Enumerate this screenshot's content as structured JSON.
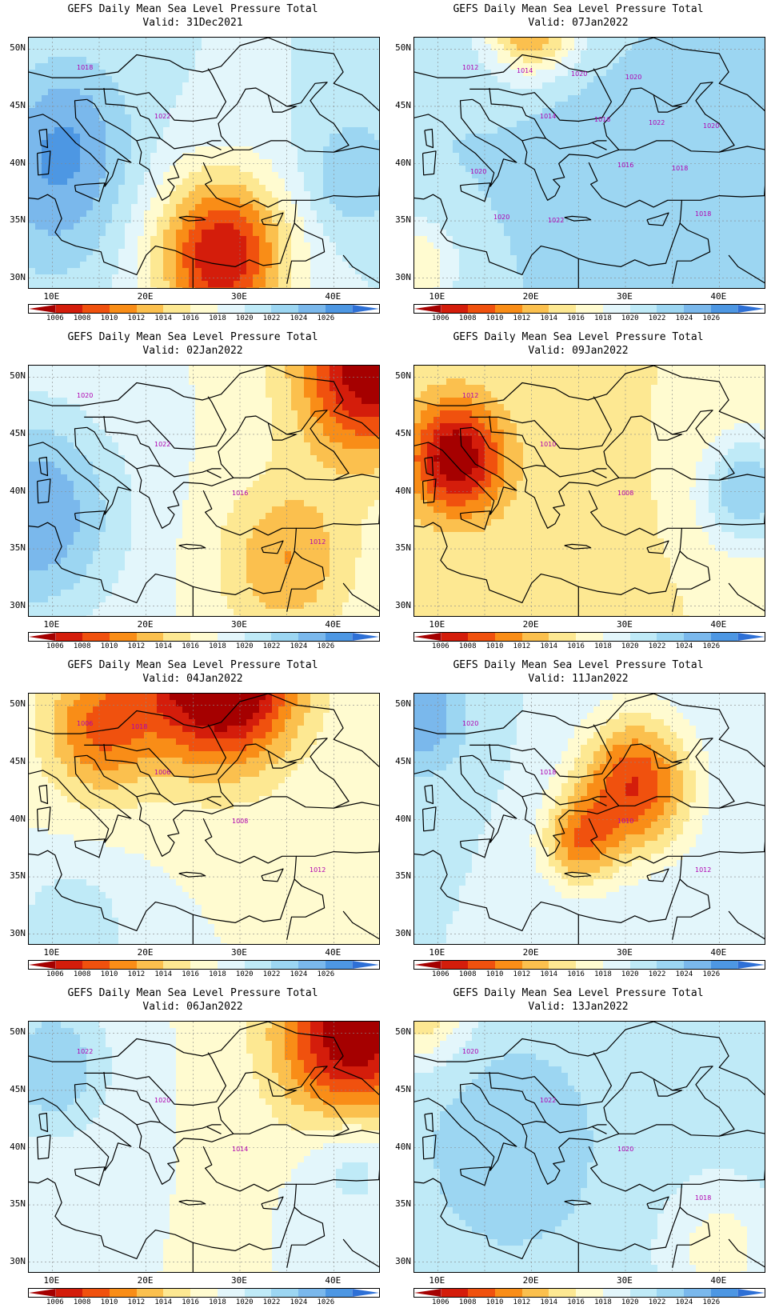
{
  "colorbar": {
    "colors": [
      "#a50000",
      "#d41d0b",
      "#f0510e",
      "#f98d17",
      "#fbc04e",
      "#fde892",
      "#fffbd0",
      "#e3f6fb",
      "#bfeaf7",
      "#9cd6f2",
      "#7ab8ec",
      "#4d97e3",
      "#2e70d6"
    ],
    "ticks": [
      "1006",
      "1008",
      "1010",
      "1012",
      "1014",
      "1016",
      "1018",
      "1020",
      "1022",
      "1024",
      "1026"
    ]
  },
  "axes": {
    "lat_labels": [
      "50N",
      "45N",
      "40N",
      "35N",
      "30N"
    ],
    "lon_labels": [
      "10E",
      "20E",
      "30E",
      "40E"
    ]
  },
  "contour_color": "#a020c8",
  "panels": [
    {
      "title": "GEFS Daily Mean Sea Level Pressure Total",
      "valid": "Valid: 31Dec2021",
      "field": {
        "base": 1020,
        "centers": [
          [
            28,
            32,
            -14,
            7
          ],
          [
            42,
            39,
            4,
            5
          ],
          [
            12,
            44,
            3,
            6
          ],
          [
            10,
            38,
            5,
            8
          ]
        ]
      },
      "contour_labels": [
        "1018",
        "1022"
      ]
    },
    {
      "title": "GEFS Daily Mean Sea Level Pressure Total",
      "valid": "Valid: 07Jan2022",
      "field": {
        "base": 1022,
        "centers": [
          [
            20,
            53,
            -12,
            5
          ],
          [
            8,
            31,
            -6,
            4
          ],
          [
            25,
            43,
            1,
            6
          ]
        ]
      },
      "contour_labels": [
        "1012",
        "1014",
        "1016",
        "1018",
        "1014",
        "1016",
        "1018",
        "1020",
        "1020",
        "1022",
        "1020",
        "1022",
        "1020",
        "1020"
      ]
    },
    {
      "title": "GEFS Daily Mean Sea Level Pressure Total",
      "valid": "Valid: 02Jan2022",
      "field": {
        "base": 1018,
        "centers": [
          [
            44,
            51,
            -14,
            8
          ],
          [
            35,
            34,
            -6,
            7
          ],
          [
            8,
            38,
            8,
            9
          ]
        ]
      },
      "contour_labels": [
        "1020",
        "1022",
        "1016",
        "1012"
      ]
    },
    {
      "title": "GEFS Daily Mean Sea Level Pressure Total",
      "valid": "Valid: 09Jan2022",
      "field": {
        "base": 1016,
        "centers": [
          [
            12,
            43,
            -12,
            5
          ],
          [
            43,
            40,
            8,
            5
          ],
          [
            24,
            36,
            -1,
            7
          ]
        ]
      },
      "contour_labels": [
        "1012",
        "1010",
        "1008"
      ]
    },
    {
      "title": "GEFS Daily Mean Sea Level Pressure Total",
      "valid": "Valid: 04Jan2022",
      "field": {
        "base": 1018,
        "centers": [
          [
            28,
            53,
            -18,
            8
          ],
          [
            15,
            48,
            -8,
            6
          ],
          [
            12,
            30,
            4,
            6
          ]
        ]
      },
      "contour_labels": [
        "1006",
        "1006",
        "1008",
        "1012",
        "1018"
      ]
    },
    {
      "title": "GEFS Daily Mean Sea Level Pressure Total",
      "valid": "Valid: 11Jan2022",
      "field": {
        "base": 1020,
        "centers": [
          [
            31,
            43,
            -12,
            6
          ],
          [
            25,
            38,
            -8,
            4
          ],
          [
            8,
            49,
            6,
            5
          ]
        ]
      },
      "contour_labels": [
        "1020",
        "1018",
        "1010",
        "1012"
      ]
    },
    {
      "title": "GEFS Daily Mean Sea Level Pressure Total",
      "valid": "Valid: 06Jan2022",
      "field": {
        "base": 1018,
        "centers": [
          [
            42,
            50,
            -14,
            8
          ],
          [
            10,
            47,
            6,
            6
          ],
          [
            42,
            39,
            4,
            5
          ]
        ]
      },
      "contour_labels": [
        "1022",
        "1020",
        "1014"
      ]
    },
    {
      "title": "GEFS Daily Mean Sea Level Pressure Total",
      "valid": "Valid: 13Jan2022",
      "field": {
        "base": 1021,
        "centers": [
          [
            18,
            40,
            3,
            8
          ],
          [
            8,
            53,
            -8,
            5
          ],
          [
            40,
            31,
            -4,
            6
          ]
        ]
      },
      "contour_labels": [
        "1020",
        "1022",
        "1020",
        "1018"
      ]
    }
  ]
}
